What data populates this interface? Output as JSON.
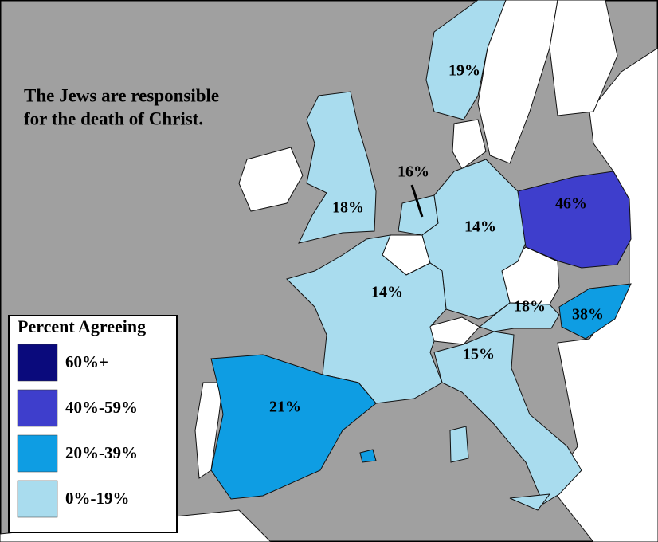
{
  "title": [
    "The Jews are responsible",
    "for the death of Christ."
  ],
  "legend": {
    "title": "Percent Agreeing",
    "items": [
      {
        "label": "60%+",
        "color": "#0a0a7c"
      },
      {
        "label": "40%-59%",
        "color": "#3e3ecc"
      },
      {
        "label": "20%-39%",
        "color": "#0e9de3"
      },
      {
        "label": "0%-19%",
        "color": "#a9dcee"
      }
    ]
  },
  "regions": [
    {
      "label": "19%",
      "color": "#a9dcee"
    },
    {
      "label": "18%",
      "color": "#a9dcee"
    },
    {
      "label": "16%",
      "color": "#a9dcee"
    },
    {
      "label": "14%",
      "color": "#a9dcee"
    },
    {
      "label": "14%",
      "color": "#a9dcee"
    },
    {
      "label": "46%",
      "color": "#3e3ecc"
    },
    {
      "label": "18%",
      "color": "#a9dcee"
    },
    {
      "label": "38%",
      "color": "#0e9de3"
    },
    {
      "label": "15%",
      "color": "#a9dcee"
    },
    {
      "label": "21%",
      "color": "#0e9de3"
    }
  ]
}
